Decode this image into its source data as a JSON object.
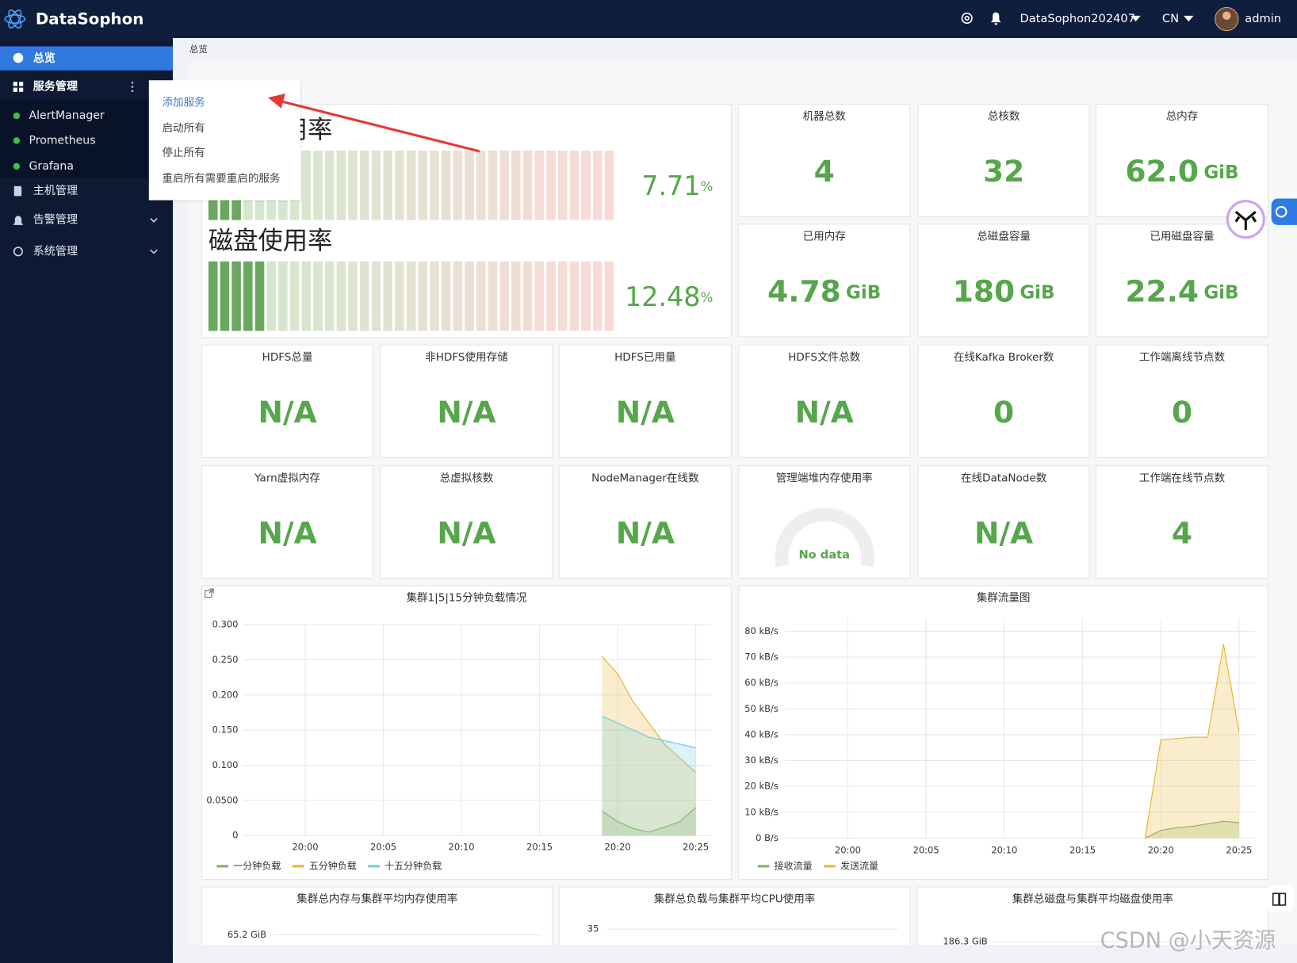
{
  "header": {
    "brand": "DataSophon",
    "cluster": "DataSophon202407",
    "lang": "CN",
    "user": "admin"
  },
  "sidebar": {
    "items": [
      "总览",
      "服务管理",
      "AlertManager",
      "Prometheus",
      "Grafana",
      "主机管理",
      "告警管理",
      "系统管理"
    ]
  },
  "breadcrumb": "总览",
  "dropdown": [
    "添加服务",
    "启动所有",
    "停止所有",
    "重启所有需要重启的服务"
  ],
  "gauges": [
    {
      "title": "内存使用率",
      "value": 7.71,
      "unit": "%",
      "ylim": [
        0,
        100
      ]
    },
    {
      "title": "磁盘使用率",
      "value": 12.48,
      "unit": "%",
      "ylim": [
        0,
        100
      ]
    }
  ],
  "stats": [
    {
      "title": "机器总数",
      "value": "4"
    },
    {
      "title": "总核数",
      "value": "32"
    },
    {
      "title": "总内存",
      "value": "62.0",
      "unit": "GiB"
    },
    {
      "title": "已用内存",
      "value": "4.78",
      "unit": "GiB"
    },
    {
      "title": "总磁盘容量",
      "value": "180",
      "unit": "GiB"
    },
    {
      "title": "已用磁盘容量",
      "value": "22.4",
      "unit": "GiB"
    },
    {
      "title": "HDFS总量",
      "value": "N/A"
    },
    {
      "title": "非HDFS使用存储",
      "value": "N/A"
    },
    {
      "title": "HDFS已用量",
      "value": "N/A"
    },
    {
      "title": "HDFS文件总数",
      "value": "N/A"
    },
    {
      "title": "在线Kafka Broker数",
      "value": "0"
    },
    {
      "title": "工作端离线节点数",
      "value": "0"
    },
    {
      "title": "Yarn虚拟内存",
      "value": "N/A"
    },
    {
      "title": "总虚拟核数",
      "value": "N/A"
    },
    {
      "title": "NodeManager在线数",
      "value": "N/A"
    },
    {
      "title": "管理端堆内存使用率",
      "value": "No data"
    },
    {
      "title": "在线DataNode数",
      "value": "N/A"
    },
    {
      "title": "工作端在线节点数",
      "value": "4"
    }
  ],
  "chart_data": [
    {
      "type": "area",
      "title": "集群1|5|15分钟负载情况",
      "x": [
        "20:19",
        "20:20",
        "20:21",
        "20:22",
        "20:23",
        "20:24",
        "20:25"
      ],
      "xlim": [
        "19:56",
        "20:26"
      ],
      "xticks": [
        "20:00",
        "20:05",
        "20:10",
        "20:15",
        "20:20",
        "20:25"
      ],
      "ylim": [
        0,
        0.3
      ],
      "yticks": [
        0,
        {
          "value": 0.05,
          "label": "0.0500"
        },
        {
          "value": 0.1,
          "label": "0.100"
        },
        {
          "value": 0.15,
          "label": "0.150"
        },
        {
          "value": 0.2,
          "label": "0.200"
        },
        {
          "value": 0.25,
          "label": "0.250"
        },
        {
          "value": 0.3,
          "label": "0.300"
        }
      ],
      "grid": true,
      "series": [
        {
          "name": "一分钟负载",
          "color": "#7eb26d",
          "values": [
            0.035,
            0.02,
            0.01,
            0.005,
            0.012,
            0.02,
            0.04
          ]
        },
        {
          "name": "五分钟负载",
          "color": "#eab839",
          "values": [
            0.255,
            0.23,
            0.19,
            0.16,
            0.13,
            0.11,
            0.09
          ]
        },
        {
          "name": "十五分钟负载",
          "color": "#6ed0e0",
          "values": [
            0.17,
            0.16,
            0.15,
            0.14,
            0.135,
            0.13,
            0.125
          ]
        }
      ]
    },
    {
      "type": "area",
      "title": "集群流量图",
      "x": [
        "20:19",
        "20:20",
        "20:21",
        "20:22",
        "20:23",
        "20:24",
        "20:25"
      ],
      "xlim": [
        "19:56",
        "20:26"
      ],
      "xticks": [
        "20:00",
        "20:05",
        "20:10",
        "20:15",
        "20:20",
        "20:25"
      ],
      "ylim": [
        0,
        85
      ],
      "yticks": [
        {
          "value": 0,
          "label": "0 B/s"
        },
        {
          "value": 10,
          "label": "10 kB/s"
        },
        {
          "value": 20,
          "label": "20 kB/s"
        },
        {
          "value": 30,
          "label": "30 kB/s"
        },
        {
          "value": 40,
          "label": "40 kB/s"
        },
        {
          "value": 50,
          "label": "50 kB/s"
        },
        {
          "value": 60,
          "label": "60 kB/s"
        },
        {
          "value": 70,
          "label": "70 kB/s"
        },
        {
          "value": 80,
          "label": "80 kB/s"
        }
      ],
      "grid": true,
      "series": [
        {
          "name": "接收流量",
          "color": "#7eb26d",
          "values": [
            0,
            3,
            4,
            4.5,
            5.5,
            6.5,
            6
          ]
        },
        {
          "name": "发送流量",
          "color": "#eab839",
          "values": [
            0,
            38,
            38.5,
            39,
            39,
            75,
            41
          ]
        }
      ]
    },
    {
      "type": "line",
      "title": "集群总内存与集群平均内存使用率",
      "yticks": [
        {
          "value": 65.2,
          "label": "65.2 GiB"
        }
      ]
    },
    {
      "type": "line",
      "title": "集群总负载与集群平均CPU使用率",
      "yticks": [
        35
      ]
    },
    {
      "type": "line",
      "title": "集群总磁盘与集群平均磁盘使用率",
      "yticks": [
        {
          "value": 186.3,
          "label": "186.3 GiB"
        }
      ]
    }
  ],
  "watermark": "CSDN @小天资源"
}
